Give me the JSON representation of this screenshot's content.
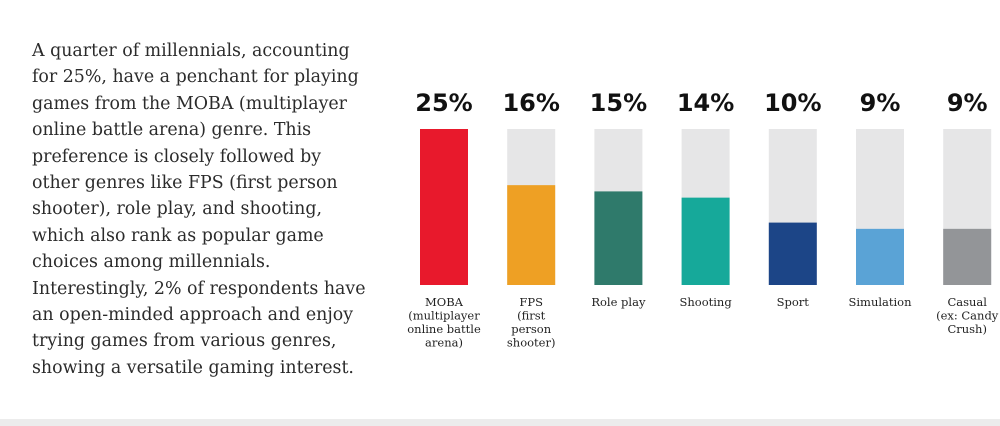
{
  "paragraph": "A quarter of millennials, accounting for 25%, have a penchant for playing games from the MOBA (multiplayer online battle arena) genre. This preference is closely followed by other genres like FPS (first person shooter), role play, and shooting, which also rank as popular game choices among millennials. Interestingly, 2% of respondents have an open-minded approach and enjoy trying games from various genres, showing a versatile gaming interest.",
  "chart_data": {
    "type": "bar",
    "categories": [
      [
        "MOBA",
        "(multiplayer",
        "online battle",
        "arena)"
      ],
      [
        "FPS",
        "(first",
        "person",
        "shooter)"
      ],
      [
        "Role play"
      ],
      [
        "Shooting"
      ],
      [
        "Sport"
      ],
      [
        "Simulation"
      ],
      [
        "Casual",
        "(ex: Candy",
        "Crush)"
      ]
    ],
    "values": [
      25,
      16,
      15,
      14,
      10,
      9,
      9
    ],
    "value_labels": [
      "25%",
      "16%",
      "15%",
      "14%",
      "10%",
      "9%",
      "9%"
    ],
    "colors": [
      "#e8192c",
      "#eea024",
      "#2f7a6b",
      "#16a99a",
      "#1c4587",
      "#5aa3d6",
      "#939598"
    ],
    "track_color": "#e6e6e7",
    "ylim": [
      0,
      25
    ],
    "axis": "hidden",
    "grid": false,
    "legend": "none"
  }
}
